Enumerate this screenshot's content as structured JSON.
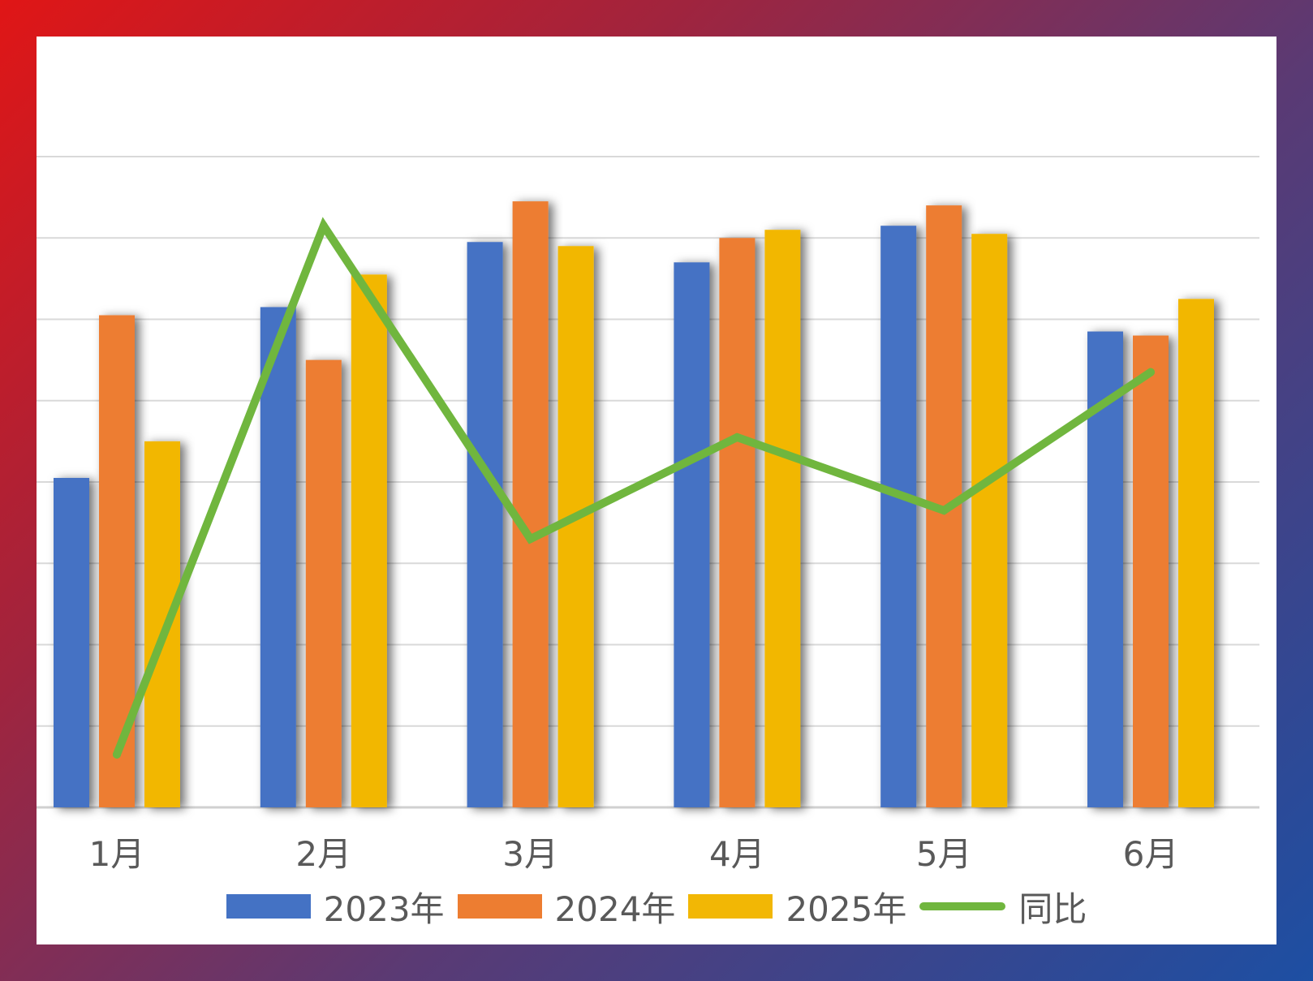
{
  "chart_data": {
    "type": "bar",
    "categories": [
      "1月",
      "2月",
      "3月",
      "4月",
      "5月",
      "6月"
    ],
    "series": [
      {
        "name": "2023年",
        "type": "bar",
        "color": "#4472C4",
        "values": [
          40.5,
          61.5,
          69.5,
          67.0,
          71.5,
          58.5
        ]
      },
      {
        "name": "2024年",
        "type": "bar",
        "color": "#ED7D31",
        "values": [
          60.5,
          55.0,
          74.5,
          70.0,
          74.0,
          58.0
        ]
      },
      {
        "name": "2025年",
        "type": "bar",
        "color": "#F2B705",
        "values": [
          45.0,
          65.5,
          69.0,
          71.0,
          70.5,
          62.5
        ]
      },
      {
        "name": "同比",
        "type": "line",
        "color": "#70B63E",
        "values": [
          6.5,
          71.5,
          33.0,
          45.5,
          36.5,
          53.5
        ]
      }
    ],
    "ylim": [
      0,
      80
    ],
    "y_grid_step": 10,
    "grid": true,
    "y_tick_labels_shown": false,
    "legend_position": "bottom"
  }
}
